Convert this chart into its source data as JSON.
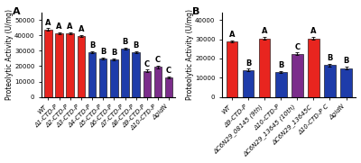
{
  "panel_A": {
    "categories": [
      "WT",
      "Δ1-CTD-P",
      "Δ2-CTD-P",
      "Δ3-CTD-P",
      "Δ4-CTD-P",
      "Δ5-CTD-P",
      "Δ6-CTD-P",
      "Δ7-CTD-P",
      "Δ8-CTD-P",
      "Δ9-CTD-P",
      "Δ10-CTD-P",
      "ΔgidN"
    ],
    "values": [
      44000,
      41500,
      41500,
      39500,
      29000,
      25000,
      24500,
      31500,
      29000,
      17000,
      19500,
      12500
    ],
    "errors": [
      700,
      700,
      700,
      700,
      700,
      700,
      700,
      700,
      700,
      700,
      700,
      700
    ],
    "colors": [
      "#e8251f",
      "#e8251f",
      "#e8251f",
      "#e8251f",
      "#1e3caa",
      "#1e3caa",
      "#1e3caa",
      "#1e3caa",
      "#1e3caa",
      "#7b2d8b",
      "#7b2d8b",
      "#7b2d8b"
    ],
    "letters": [
      "A",
      "A",
      "A",
      "A",
      "B",
      "B",
      "B",
      "B",
      "B",
      "C",
      "C",
      "C"
    ],
    "ylabel": "Proteolytic Activity (U/mg)",
    "ylim": [
      0,
      55000
    ],
    "yticks": [
      0,
      10000,
      20000,
      30000,
      40000,
      50000
    ],
    "panel_label": "A"
  },
  "panel_B": {
    "categories": [
      "WT",
      "Δ9-CTD-P",
      "ΔC6N29_08145 (9th)",
      "Δ10-CTD-P",
      "ΔC6N29_13645 (10th)",
      "ΔC6N29_13645C",
      "Δ10-CTD-P C",
      "ΔgidN"
    ],
    "values": [
      29000,
      14000,
      30500,
      13000,
      22500,
      30500,
      16500,
      15000
    ],
    "errors": [
      600,
      600,
      600,
      600,
      600,
      600,
      600,
      600
    ],
    "colors": [
      "#e8251f",
      "#1e3caa",
      "#e8251f",
      "#1e3caa",
      "#7b2d8b",
      "#e8251f",
      "#1e3caa",
      "#1e3caa"
    ],
    "letters": [
      "A",
      "B",
      "A",
      "B",
      "C",
      "A",
      "B",
      "B"
    ],
    "ylabel": "Proteolytic Activity (U/mg)",
    "ylim": [
      0,
      44000
    ],
    "yticks": [
      0,
      10000,
      20000,
      30000,
      40000
    ],
    "panel_label": "B"
  },
  "tick_fontsize": 5.0,
  "label_fontsize": 5.5,
  "letter_fontsize": 6.0,
  "panel_label_fontsize": 8
}
